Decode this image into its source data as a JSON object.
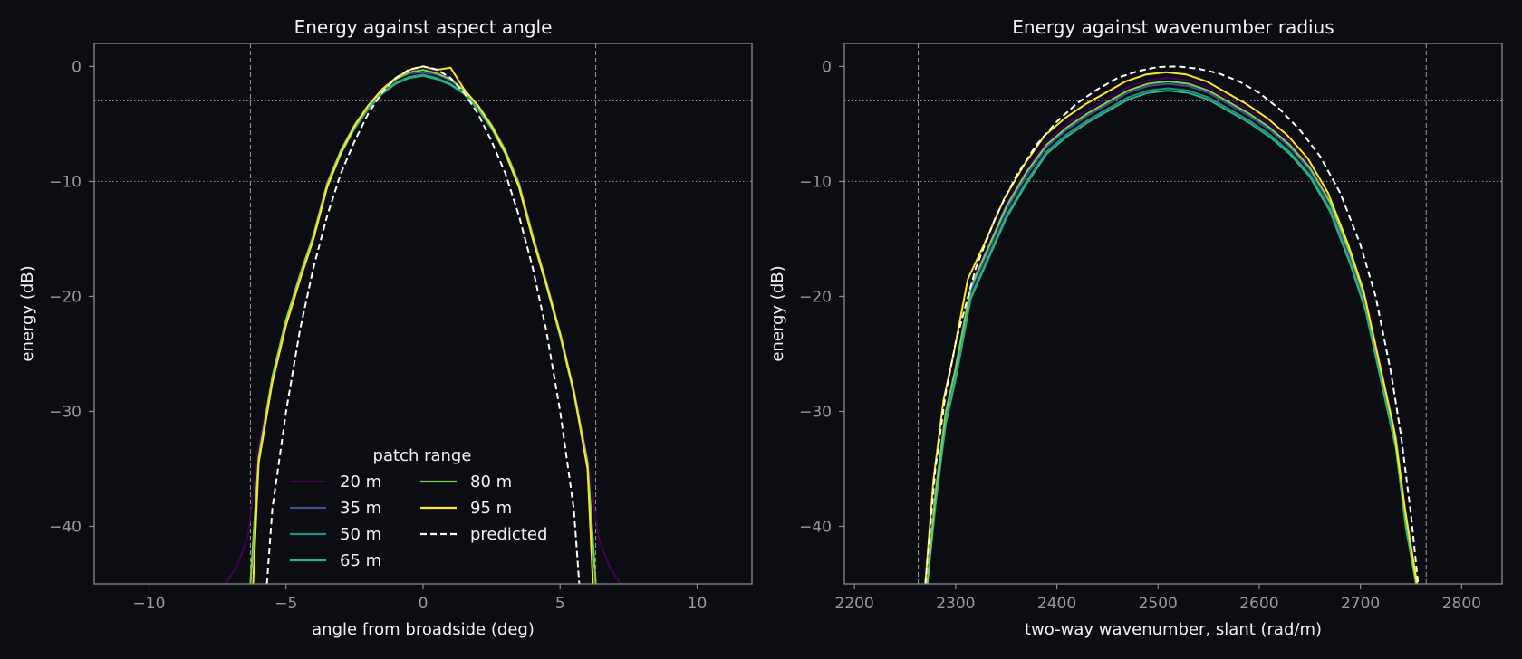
{
  "colors": {
    "background": "#0b0d12",
    "frame": "#8a8a8a",
    "guide": "#9a9a9a",
    "predicted": "#ffffff",
    "series": [
      "#440154",
      "#3b528b",
      "#21918c",
      "#2fb47c",
      "#7ad151",
      "#fde725"
    ]
  },
  "chart_data": [
    {
      "type": "line",
      "title": "Energy against aspect angle",
      "xlabel": "angle from broadside (deg)",
      "ylabel": "energy (dB)",
      "xlim": [
        -12,
        12
      ],
      "ylim": [
        -45,
        2
      ],
      "xticks": [
        -10,
        -5,
        0,
        5,
        10
      ],
      "xtick_labels": [
        "−10",
        "−5",
        "0",
        "5",
        "10"
      ],
      "yticks": [
        0,
        -10,
        -20,
        -30,
        -40
      ],
      "ytick_labels": [
        "0",
        "−10",
        "−20",
        "−30",
        "−40"
      ],
      "vlines": [
        -6.3,
        6.3
      ],
      "hlines": [
        -3,
        -10
      ],
      "legend": {
        "title": "patch range",
        "placement": "lower center",
        "entries": [
          "20 m",
          "35 m",
          "50 m",
          "65 m",
          "80 m",
          "95 m",
          "predicted"
        ]
      },
      "series": [
        {
          "name": "20 m",
          "x": [
            -7.2,
            -6.8,
            -6.4,
            -6.0,
            -5.5,
            -5.0,
            -4.5,
            -4.0,
            -3.5,
            -3.0,
            -2.5,
            -2.0,
            -1.5,
            -1.0,
            -0.5,
            0.0,
            0.5,
            1.0,
            1.5,
            2.0,
            2.5,
            3.0,
            3.5,
            4.0,
            4.5,
            5.0,
            5.5,
            6.0,
            6.4,
            6.8,
            7.2
          ],
          "y": [
            -45,
            -43.5,
            -41,
            -33,
            -27,
            -22,
            -18,
            -14.5,
            -10,
            -7.2,
            -5,
            -3.3,
            -2,
            -1,
            -0.4,
            -0.3,
            -0.4,
            -1,
            -2,
            -3.3,
            -5,
            -7.2,
            -10,
            -14.5,
            -18.5,
            -23,
            -28,
            -34,
            -41,
            -43.5,
            -45
          ]
        },
        {
          "name": "35 m",
          "x": [
            -6.3,
            -6.0,
            -5.5,
            -5.0,
            -4.5,
            -4.0,
            -3.5,
            -3.0,
            -2.5,
            -2.0,
            -1.5,
            -1.0,
            -0.5,
            0.0,
            0.5,
            1.0,
            1.5,
            2.0,
            2.5,
            3.0,
            3.5,
            4.0,
            4.5,
            5.0,
            5.5,
            6.0,
            6.3
          ],
          "y": [
            -45,
            -34,
            -27,
            -22,
            -18.2,
            -14.7,
            -10.2,
            -7.3,
            -5.1,
            -3.4,
            -2.1,
            -1.1,
            -0.6,
            -0.5,
            -0.7,
            -1.2,
            -2.1,
            -3.4,
            -5.1,
            -7.3,
            -10.2,
            -14.7,
            -18.8,
            -23.2,
            -28.3,
            -34.5,
            -45
          ]
        },
        {
          "name": "50 m",
          "x": [
            -6.3,
            -6.0,
            -5.5,
            -5.0,
            -4.5,
            -4.0,
            -3.5,
            -3.0,
            -2.5,
            -2.0,
            -1.5,
            -1.0,
            -0.5,
            0.0,
            0.5,
            1.0,
            1.5,
            2.0,
            2.5,
            3.0,
            3.5,
            4.0,
            4.5,
            5.0,
            5.5,
            6.0,
            6.3
          ],
          "y": [
            -45,
            -34.2,
            -27.2,
            -22.2,
            -18.4,
            -14.9,
            -10.4,
            -7.5,
            -5.3,
            -3.6,
            -2.3,
            -1.4,
            -0.9,
            -0.7,
            -1.0,
            -1.5,
            -2.3,
            -3.6,
            -5.3,
            -7.5,
            -10.4,
            -14.9,
            -19.0,
            -23.4,
            -28.4,
            -34.6,
            -45
          ]
        },
        {
          "name": "65 m",
          "x": [
            -6.3,
            -6.0,
            -5.5,
            -5.0,
            -4.5,
            -4.0,
            -3.5,
            -3.0,
            -2.5,
            -2.0,
            -1.5,
            -1.0,
            -0.5,
            0.0,
            0.5,
            1.0,
            1.5,
            2.0,
            2.5,
            3.0,
            3.5,
            4.0,
            4.5,
            5.0,
            5.5,
            6.0,
            6.3
          ],
          "y": [
            -45,
            -34.3,
            -27.3,
            -22.3,
            -18.5,
            -15.0,
            -10.5,
            -7.6,
            -5.4,
            -3.7,
            -2.4,
            -1.5,
            -1.0,
            -0.8,
            -1.1,
            -1.6,
            -2.4,
            -3.7,
            -5.4,
            -7.6,
            -10.5,
            -15.0,
            -19.1,
            -23.5,
            -28.5,
            -34.7,
            -45
          ]
        },
        {
          "name": "80 m",
          "x": [
            -6.3,
            -6.0,
            -5.5,
            -5.0,
            -4.5,
            -4.0,
            -3.5,
            -3.0,
            -2.5,
            -2.0,
            -1.5,
            -1.0,
            -0.5,
            0.0,
            0.5,
            1.0,
            1.5,
            2.0,
            2.5,
            3.0,
            3.5,
            4.0,
            4.5,
            5.0,
            5.5,
            6.0,
            6.3
          ],
          "y": [
            -45,
            -34.0,
            -27.0,
            -22.0,
            -18.2,
            -14.7,
            -10.2,
            -7.3,
            -5.1,
            -3.4,
            -2.1,
            -1.1,
            -0.5,
            -0.3,
            -0.6,
            -1.1,
            -2.1,
            -3.4,
            -5.1,
            -7.3,
            -10.2,
            -14.7,
            -18.8,
            -23.2,
            -28.2,
            -34.4,
            -45
          ]
        },
        {
          "name": "95 m",
          "x": [
            -6.2,
            -6.0,
            -5.5,
            -5.0,
            -4.5,
            -4.0,
            -3.5,
            -3.0,
            -2.5,
            -2.0,
            -1.5,
            -1.0,
            -0.5,
            0.0,
            0.5,
            1.0,
            1.5,
            2.0,
            2.5,
            3.0,
            3.5,
            4.0,
            4.5,
            5.0,
            5.5,
            6.0,
            6.2
          ],
          "y": [
            -45,
            -34.5,
            -27.5,
            -22.5,
            -18.6,
            -15.0,
            -10.5,
            -7.5,
            -5.2,
            -3.4,
            -2.0,
            -1.0,
            -0.3,
            0.0,
            -0.3,
            -0.1,
            -2.0,
            -3.4,
            -5.2,
            -7.5,
            -10.5,
            -15.0,
            -19.0,
            -23.3,
            -28.3,
            -35.0,
            -45
          ]
        },
        {
          "name": "predicted",
          "dashed": true,
          "x": [
            -5.7,
            -5.5,
            -5.0,
            -4.5,
            -4.0,
            -3.5,
            -3.0,
            -2.5,
            -2.0,
            -1.5,
            -1.0,
            -0.5,
            0.0,
            0.5,
            1.0,
            1.5,
            2.0,
            2.5,
            3.0,
            3.5,
            4.0,
            4.5,
            5.0,
            5.5,
            5.7
          ],
          "y": [
            -45,
            -38.5,
            -30,
            -23,
            -17.5,
            -13,
            -9.3,
            -6.5,
            -4.1,
            -2.3,
            -1.0,
            -0.25,
            0,
            -0.25,
            -1.0,
            -2.3,
            -4.1,
            -6.5,
            -9.3,
            -13,
            -17.5,
            -23,
            -30,
            -38.5,
            -45
          ]
        }
      ]
    },
    {
      "type": "line",
      "title": "Energy against wavenumber radius",
      "xlabel": "two-way wavenumber, slant (rad/m)",
      "ylabel": "energy (dB)",
      "xlim": [
        2190,
        2840
      ],
      "ylim": [
        -45,
        2
      ],
      "xticks": [
        2200,
        2300,
        2400,
        2500,
        2600,
        2700,
        2800
      ],
      "xtick_labels": [
        "2200",
        "2300",
        "2400",
        "2500",
        "2600",
        "2700",
        "2800"
      ],
      "yticks": [
        0,
        -10,
        -20,
        -30,
        -40
      ],
      "ytick_labels": [
        "0",
        "−10",
        "−20",
        "−30",
        "−40"
      ],
      "vlines": [
        2263,
        2765
      ],
      "hlines": [
        -3,
        -10
      ],
      "series": [
        {
          "name": "20 m",
          "x": [
            2272,
            2280,
            2290,
            2300,
            2315,
            2330,
            2350,
            2370,
            2390,
            2410,
            2430,
            2450,
            2470,
            2490,
            2510,
            2530,
            2550,
            2570,
            2590,
            2610,
            2630,
            2650,
            2670,
            2690,
            2705,
            2720,
            2735,
            2745,
            2755
          ],
          "y": [
            -45,
            -37,
            -30,
            -26,
            -19,
            -16,
            -12,
            -9,
            -6.5,
            -5,
            -3.8,
            -2.8,
            -1.8,
            -1.2,
            -1.0,
            -1.2,
            -1.8,
            -2.8,
            -3.8,
            -5,
            -6.5,
            -8.5,
            -11.5,
            -16,
            -20,
            -26,
            -32,
            -39,
            -45
          ]
        },
        {
          "name": "35 m",
          "x": [
            2272,
            2280,
            2290,
            2300,
            2315,
            2330,
            2350,
            2370,
            2390,
            2410,
            2430,
            2450,
            2470,
            2490,
            2510,
            2530,
            2550,
            2570,
            2590,
            2610,
            2630,
            2650,
            2670,
            2690,
            2705,
            2720,
            2735,
            2745,
            2755
          ],
          "y": [
            -45,
            -37.5,
            -30.5,
            -26.5,
            -19.5,
            -16.5,
            -12.5,
            -9.5,
            -7.0,
            -5.5,
            -4.3,
            -3.3,
            -2.3,
            -1.7,
            -1.5,
            -1.7,
            -2.3,
            -3.3,
            -4.3,
            -5.5,
            -7.0,
            -9.0,
            -12.0,
            -16.5,
            -20.5,
            -26.5,
            -32.5,
            -39.5,
            -45
          ]
        },
        {
          "name": "50 m",
          "x": [
            2272,
            2280,
            2290,
            2300,
            2315,
            2330,
            2350,
            2370,
            2390,
            2410,
            2430,
            2450,
            2470,
            2490,
            2510,
            2530,
            2550,
            2570,
            2590,
            2610,
            2630,
            2650,
            2670,
            2690,
            2705,
            2720,
            2735,
            2745,
            2755
          ],
          "y": [
            -45,
            -38,
            -31,
            -27,
            -20,
            -17,
            -13,
            -10,
            -7.4,
            -5.9,
            -4.7,
            -3.7,
            -2.7,
            -2.1,
            -1.9,
            -2.1,
            -2.7,
            -3.7,
            -4.7,
            -5.9,
            -7.4,
            -9.4,
            -12.4,
            -17,
            -21,
            -27,
            -33,
            -40,
            -45
          ]
        },
        {
          "name": "65 m",
          "x": [
            2272,
            2280,
            2290,
            2300,
            2315,
            2330,
            2350,
            2370,
            2390,
            2410,
            2430,
            2450,
            2470,
            2490,
            2510,
            2530,
            2550,
            2570,
            2590,
            2610,
            2630,
            2650,
            2670,
            2690,
            2705,
            2720,
            2735,
            2745,
            2755
          ],
          "y": [
            -45,
            -38.2,
            -31.2,
            -27.2,
            -20.2,
            -17.2,
            -13.2,
            -10.2,
            -7.6,
            -6.1,
            -4.9,
            -3.9,
            -2.9,
            -2.3,
            -2.1,
            -2.3,
            -2.9,
            -3.9,
            -4.9,
            -6.1,
            -7.6,
            -9.6,
            -12.6,
            -17.2,
            -21.2,
            -27.2,
            -33.2,
            -40.2,
            -45
          ]
        },
        {
          "name": "80 m",
          "x": [
            2272,
            2280,
            2290,
            2300,
            2315,
            2330,
            2350,
            2370,
            2390,
            2410,
            2430,
            2450,
            2470,
            2490,
            2510,
            2530,
            2550,
            2570,
            2590,
            2610,
            2630,
            2650,
            2670,
            2690,
            2705,
            2720,
            2735,
            2745,
            2755
          ],
          "y": [
            -45,
            -37.2,
            -30.2,
            -26.2,
            -19.2,
            -16.2,
            -12.2,
            -9.2,
            -6.8,
            -5.3,
            -4.1,
            -3.1,
            -2.1,
            -1.5,
            -1.3,
            -1.5,
            -2.1,
            -3.1,
            -4.1,
            -5.3,
            -6.8,
            -8.8,
            -11.8,
            -16.3,
            -20.3,
            -26.3,
            -32.3,
            -39.3,
            -45
          ]
        },
        {
          "name": "95 m",
          "x": [
            2270,
            2278,
            2288,
            2298,
            2312,
            2328,
            2348,
            2368,
            2388,
            2408,
            2428,
            2448,
            2468,
            2488,
            2508,
            2528,
            2548,
            2568,
            2588,
            2608,
            2628,
            2648,
            2668,
            2688,
            2703,
            2718,
            2733,
            2744,
            2756
          ],
          "y": [
            -45,
            -36,
            -29,
            -25,
            -18.5,
            -15.5,
            -11.5,
            -8.5,
            -6.0,
            -4.5,
            -3.3,
            -2.3,
            -1.3,
            -0.7,
            -0.5,
            -0.7,
            -1.3,
            -2.3,
            -3.3,
            -4.5,
            -6.0,
            -8.0,
            -11.0,
            -15.5,
            -19.5,
            -25.5,
            -31.5,
            -38.5,
            -45
          ]
        },
        {
          "name": "predicted",
          "dashed": true,
          "x": [
            2270,
            2280,
            2290,
            2300,
            2320,
            2340,
            2360,
            2380,
            2400,
            2420,
            2440,
            2460,
            2480,
            2500,
            2520,
            2540,
            2560,
            2580,
            2600,
            2620,
            2640,
            2660,
            2680,
            2700,
            2715,
            2730,
            2740,
            2750,
            2757
          ],
          "y": [
            -45,
            -35,
            -28.5,
            -24,
            -17.5,
            -13,
            -9.5,
            -6.8,
            -4.8,
            -3.2,
            -2.0,
            -1.0,
            -0.4,
            -0.05,
            0,
            -0.2,
            -0.6,
            -1.3,
            -2.3,
            -3.7,
            -5.5,
            -7.8,
            -11,
            -15.5,
            -20,
            -26.5,
            -32,
            -39,
            -45
          ]
        }
      ]
    }
  ]
}
